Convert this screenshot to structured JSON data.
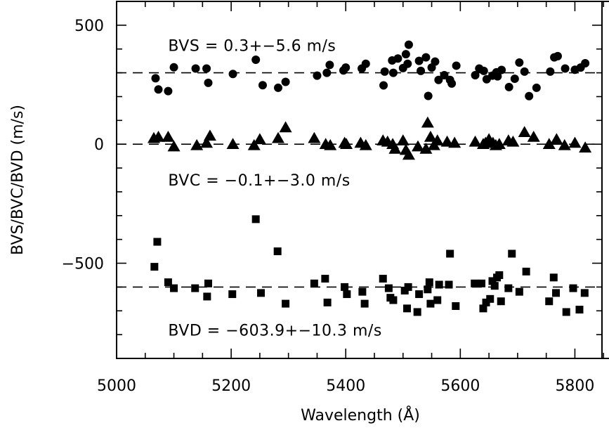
{
  "chart_data": {
    "type": "scatter",
    "title": "",
    "xlabel": "Wavelength (Å)",
    "ylabel": "BVS/BVC/BVD (m/s)",
    "xlim": [
      5000,
      5900
    ],
    "ylim": [
      -900,
      600
    ],
    "xticks": [
      5000,
      5200,
      5400,
      5600,
      5800
    ],
    "xtick_labels": [
      "5000",
      "5200",
      "5400",
      "5600",
      "5800"
    ],
    "yticks": [
      500,
      0,
      -500
    ],
    "ytick_labels": [
      "500",
      "0",
      "−500"
    ],
    "grid": false,
    "reference_lines": [
      300,
      0,
      -600
    ],
    "annotations": [
      {
        "text": "BVS = 0.3+−5.6 m/s",
        "x": 5090,
        "y": 415
      },
      {
        "text": "BVC = −0.1+−3.0 m/s",
        "x": 5090,
        "y": -150
      },
      {
        "text": "BVD = −603.9+−10.3 m/s",
        "x": 5090,
        "y": -780
      }
    ],
    "series": [
      {
        "marker": "circle",
        "points": [
          [
            5068,
            277
          ],
          [
            5073,
            230
          ],
          [
            5090,
            223
          ],
          [
            5100,
            323
          ],
          [
            5138,
            318
          ],
          [
            5157,
            318
          ],
          [
            5160,
            258
          ],
          [
            5203,
            295
          ],
          [
            5243,
            355
          ],
          [
            5255,
            248
          ],
          [
            5282,
            237
          ],
          [
            5295,
            262
          ],
          [
            5350,
            288
          ],
          [
            5367,
            300
          ],
          [
            5372,
            333
          ],
          [
            5396,
            310
          ],
          [
            5400,
            322
          ],
          [
            5428,
            318
          ],
          [
            5435,
            338
          ],
          [
            5466,
            247
          ],
          [
            5468,
            305
          ],
          [
            5481,
            352
          ],
          [
            5483,
            300
          ],
          [
            5491,
            360
          ],
          [
            5500,
            320
          ],
          [
            5505,
            378
          ],
          [
            5508,
            338
          ],
          [
            5510,
            418
          ],
          [
            5528,
            350
          ],
          [
            5531,
            308
          ],
          [
            5540,
            365
          ],
          [
            5544,
            203
          ],
          [
            5550,
            322
          ],
          [
            5556,
            347
          ],
          [
            5562,
            270
          ],
          [
            5572,
            290
          ],
          [
            5582,
            270
          ],
          [
            5585,
            255
          ],
          [
            5593,
            330
          ],
          [
            5626,
            290
          ],
          [
            5633,
            318
          ],
          [
            5641,
            308
          ],
          [
            5646,
            273
          ],
          [
            5656,
            288
          ],
          [
            5663,
            302
          ],
          [
            5665,
            285
          ],
          [
            5672,
            312
          ],
          [
            5685,
            240
          ],
          [
            5695,
            275
          ],
          [
            5703,
            343
          ],
          [
            5712,
            305
          ],
          [
            5720,
            202
          ],
          [
            5733,
            237
          ],
          [
            5757,
            305
          ],
          [
            5764,
            365
          ],
          [
            5770,
            370
          ],
          [
            5783,
            318
          ],
          [
            5800,
            313
          ],
          [
            5810,
            322
          ],
          [
            5818,
            340
          ]
        ]
      },
      {
        "marker": "triangle",
        "points": [
          [
            5065,
            25
          ],
          [
            5073,
            30
          ],
          [
            5090,
            30
          ],
          [
            5100,
            -10
          ],
          [
            5140,
            -5
          ],
          [
            5157,
            5
          ],
          [
            5163,
            35
          ],
          [
            5203,
            0
          ],
          [
            5240,
            -5
          ],
          [
            5250,
            20
          ],
          [
            5282,
            25
          ],
          [
            5295,
            70
          ],
          [
            5345,
            25
          ],
          [
            5365,
            0
          ],
          [
            5373,
            -5
          ],
          [
            5398,
            5
          ],
          [
            5401,
            0
          ],
          [
            5426,
            5
          ],
          [
            5435,
            -5
          ],
          [
            5465,
            15
          ],
          [
            5473,
            10
          ],
          [
            5482,
            0
          ],
          [
            5486,
            -20
          ],
          [
            5500,
            15
          ],
          [
            5505,
            -25
          ],
          [
            5510,
            -45
          ],
          [
            5526,
            -10
          ],
          [
            5540,
            -20
          ],
          [
            5543,
            90
          ],
          [
            5548,
            30
          ],
          [
            5554,
            -5
          ],
          [
            5560,
            15
          ],
          [
            5577,
            10
          ],
          [
            5590,
            5
          ],
          [
            5626,
            10
          ],
          [
            5640,
            0
          ],
          [
            5644,
            5
          ],
          [
            5650,
            20
          ],
          [
            5657,
            5
          ],
          [
            5662,
            -5
          ],
          [
            5668,
            0
          ],
          [
            5684,
            15
          ],
          [
            5692,
            10
          ],
          [
            5712,
            50
          ],
          [
            5728,
            30
          ],
          [
            5755,
            0
          ],
          [
            5768,
            20
          ],
          [
            5782,
            -5
          ],
          [
            5800,
            5
          ],
          [
            5818,
            -15
          ]
        ]
      },
      {
        "marker": "square",
        "points": [
          [
            5066,
            -515
          ],
          [
            5071,
            -410
          ],
          [
            5090,
            -580
          ],
          [
            5100,
            -605
          ],
          [
            5137,
            -605
          ],
          [
            5158,
            -640
          ],
          [
            5160,
            -585
          ],
          [
            5202,
            -630
          ],
          [
            5243,
            -315
          ],
          [
            5252,
            -625
          ],
          [
            5281,
            -450
          ],
          [
            5295,
            -670
          ],
          [
            5345,
            -585
          ],
          [
            5364,
            -565
          ],
          [
            5368,
            -665
          ],
          [
            5398,
            -600
          ],
          [
            5402,
            -630
          ],
          [
            5429,
            -620
          ],
          [
            5433,
            -670
          ],
          [
            5465,
            -565
          ],
          [
            5475,
            -605
          ],
          [
            5478,
            -645
          ],
          [
            5483,
            -655
          ],
          [
            5503,
            -615
          ],
          [
            5507,
            -690
          ],
          [
            5509,
            -600
          ],
          [
            5525,
            -705
          ],
          [
            5528,
            -630
          ],
          [
            5543,
            -610
          ],
          [
            5546,
            -580
          ],
          [
            5548,
            -670
          ],
          [
            5560,
            -655
          ],
          [
            5563,
            -590
          ],
          [
            5580,
            -590
          ],
          [
            5582,
            -460
          ],
          [
            5592,
            -680
          ],
          [
            5625,
            -585
          ],
          [
            5637,
            -585
          ],
          [
            5640,
            -690
          ],
          [
            5645,
            -665
          ],
          [
            5652,
            -650
          ],
          [
            5656,
            -575
          ],
          [
            5660,
            -595
          ],
          [
            5664,
            -560
          ],
          [
            5668,
            -550
          ],
          [
            5671,
            -660
          ],
          [
            5684,
            -605
          ],
          [
            5690,
            -460
          ],
          [
            5703,
            -620
          ],
          [
            5715,
            -535
          ],
          [
            5755,
            -660
          ],
          [
            5763,
            -560
          ],
          [
            5767,
            -625
          ],
          [
            5785,
            -705
          ],
          [
            5797,
            -605
          ],
          [
            5808,
            -695
          ],
          [
            5817,
            -625
          ]
        ]
      }
    ]
  }
}
